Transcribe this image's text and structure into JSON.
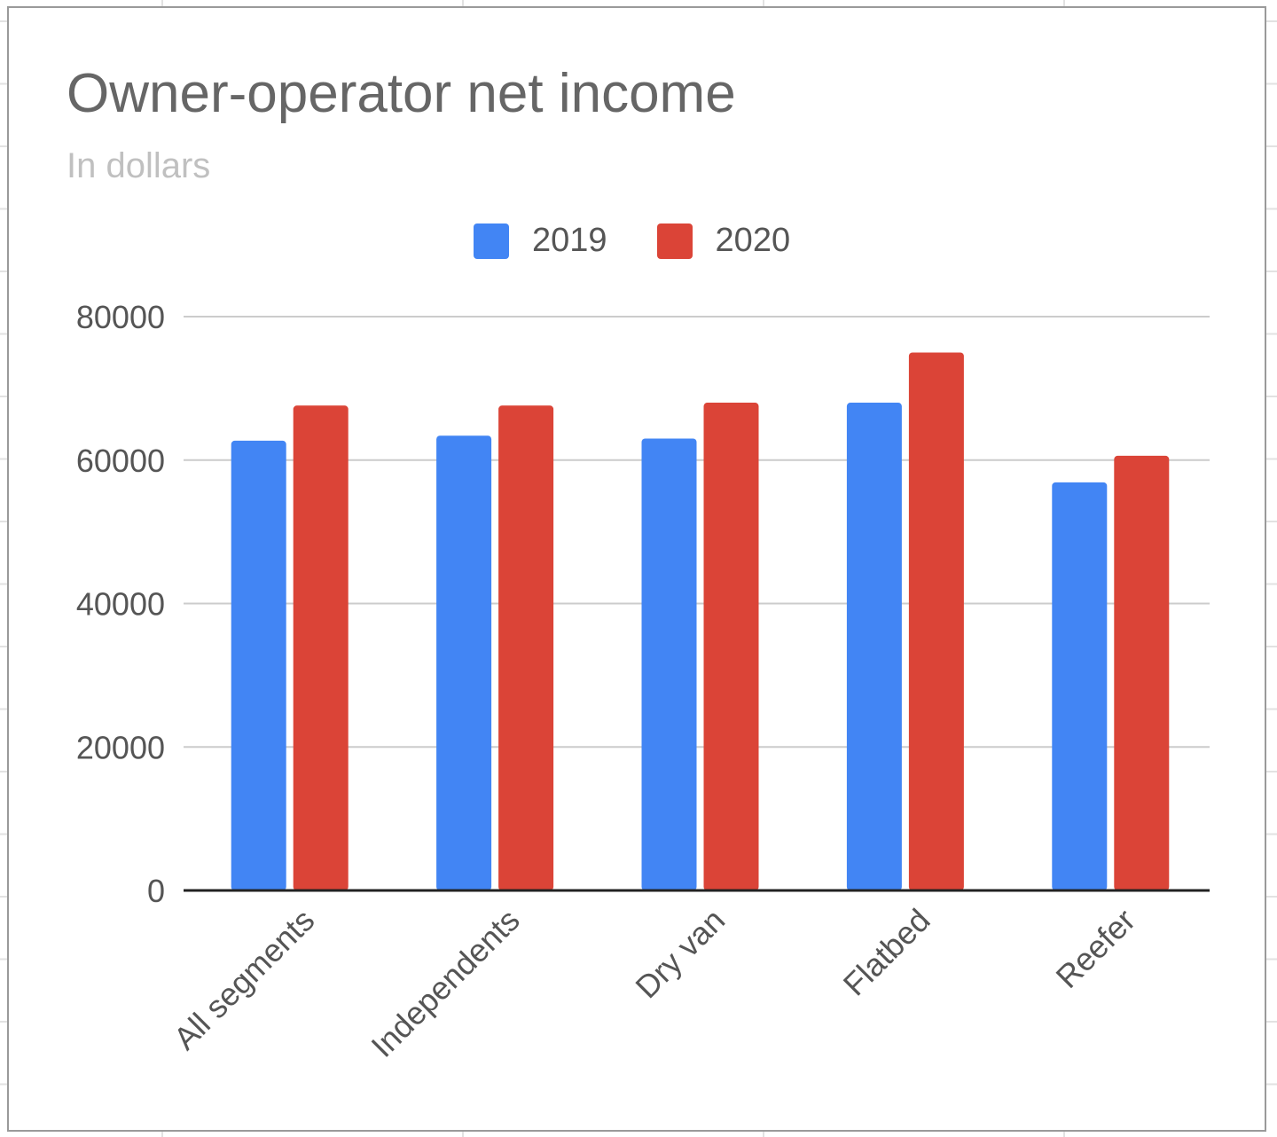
{
  "chart_data": {
    "type": "bar",
    "title": "Owner-operator net income",
    "subtitle": "In dollars",
    "xlabel": "",
    "ylabel": "",
    "categories": [
      "All segments",
      "Independents",
      "Dry van",
      "Flatbed",
      "Reefer"
    ],
    "series": [
      {
        "name": "2019",
        "color": "#4285f4",
        "values": [
          62700,
          63400,
          63000,
          68000,
          56900
        ]
      },
      {
        "name": "2020",
        "color": "#db4437",
        "values": [
          67600,
          67600,
          68000,
          75000,
          60600
        ]
      }
    ],
    "ylim": [
      0,
      80000
    ],
    "yticks": [
      "0",
      "20000",
      "40000",
      "60000",
      "80000"
    ],
    "grid": true,
    "legend_position": "top"
  },
  "legend": [
    {
      "label": "2019",
      "color": "#4285f4"
    },
    {
      "label": "2020",
      "color": "#db4437"
    }
  ]
}
